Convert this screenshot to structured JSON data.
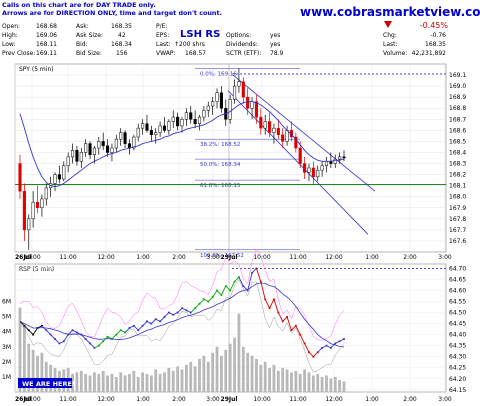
{
  "notes": {
    "line1": "Calls on this chart are for DAY TRADE only.",
    "line2": "Arrows are for DIRECTION ONLY, time and target don't count."
  },
  "watermark_url": "www.cobrasmarketview.com",
  "badge": "WE ARE HERE!",
  "pattern_label": "LSH RS",
  "quote": {
    "open_label": "Open:",
    "open": "168.68",
    "high_label": "High:",
    "high": "169.06",
    "low_label": "Low:",
    "low": "168.11",
    "prev_label": "Prev Close:",
    "prev": "169.11",
    "ask_label": "Ask:",
    "ask": "168.35",
    "asksize_label": "Ask Size:",
    "asksize": "42",
    "bid_label": "Bid:",
    "bid": "168.34",
    "bidsize_label": "Bid Size:",
    "bidsize": "156",
    "pe_label": "P/E:",
    "pe": "",
    "eps_label": "EPS:",
    "eps": "",
    "last_label": "Last:",
    "last_trade": "↑200 shrs",
    "vwap_label": "VWAP:",
    "vwap": "168.57",
    "options_label": "Options:",
    "options": "yes",
    "dividends_label": "Dividends:",
    "dividends": "yes",
    "sctr_label": "SCTR (ETF):",
    "sctr": "78.9",
    "pct_change": "-0.45%",
    "chg_label": "Chg:",
    "chg": "-0.76",
    "lastprice_label": "Last:",
    "lastprice": "168.35",
    "volume_label": "Volume:",
    "volume": "42,231,892"
  },
  "colors": {
    "up": "#00aa00",
    "down": "#dd0000",
    "neutral": "#000000",
    "ma": "#3333cc",
    "channel": "#3333cc",
    "support": "#007700",
    "rsp": "#3333cc",
    "ghost": "#ff66ff",
    "vwap_line": "#999999",
    "resistance_dotted": "#3333cc",
    "negative": "#cc0000"
  },
  "chart_data": [
    {
      "type": "candlestick",
      "title": "SPY (5 min)",
      "ylim": [
        167.5,
        169.2
      ],
      "yticks": [
        169.1,
        169.0,
        168.9,
        168.8,
        168.7,
        168.6,
        168.5,
        168.4,
        168.3,
        168.2,
        168.1,
        168.0,
        167.9,
        167.8,
        167.7,
        167.6
      ],
      "xticks": [
        "26Jul",
        "10:00",
        "11:00",
        "12:00",
        "1:00",
        "2:00",
        "3:00",
        "29Jul",
        "10:00",
        "11:00",
        "12:00",
        "1:00",
        "2:00",
        "3:00"
      ],
      "fib_levels": [
        {
          "label": "0.0%: 169.16",
          "value": 169.16
        },
        {
          "label": "38.2%: 168.52",
          "value": 168.52
        },
        {
          "label": "50.0%: 168.34",
          "value": 168.34
        },
        {
          "label": "61.8%: 168.15",
          "value": 168.15
        },
        {
          "label": "100.0%: 167.52",
          "value": 167.52
        }
      ],
      "support_level": 168.11,
      "resistance_level": 169.11,
      "bars": [
        {
          "o": 168.3,
          "h": 168.38,
          "l": 167.98,
          "c": 168.05
        },
        {
          "o": 168.05,
          "h": 168.12,
          "l": 167.6,
          "c": 167.7
        },
        {
          "o": 167.7,
          "h": 167.84,
          "l": 167.52,
          "c": 167.8
        },
        {
          "o": 167.8,
          "h": 168.05,
          "l": 167.72,
          "c": 167.95
        },
        {
          "o": 167.95,
          "h": 168.1,
          "l": 167.85,
          "c": 167.9
        },
        {
          "o": 167.9,
          "h": 168.02,
          "l": 167.82,
          "c": 167.98
        },
        {
          "o": 167.98,
          "h": 168.12,
          "l": 167.92,
          "c": 168.08
        },
        {
          "o": 168.08,
          "h": 168.18,
          "l": 168.0,
          "c": 168.12
        },
        {
          "o": 168.12,
          "h": 168.22,
          "l": 168.05,
          "c": 168.2
        },
        {
          "o": 168.2,
          "h": 168.28,
          "l": 168.12,
          "c": 168.16
        },
        {
          "o": 168.16,
          "h": 168.32,
          "l": 168.14,
          "c": 168.28
        },
        {
          "o": 168.28,
          "h": 168.4,
          "l": 168.22,
          "c": 168.36
        },
        {
          "o": 168.36,
          "h": 168.48,
          "l": 168.3,
          "c": 168.42
        },
        {
          "o": 168.42,
          "h": 168.46,
          "l": 168.28,
          "c": 168.32
        },
        {
          "o": 168.32,
          "h": 168.44,
          "l": 168.26,
          "c": 168.4
        },
        {
          "o": 168.4,
          "h": 168.52,
          "l": 168.36,
          "c": 168.48
        },
        {
          "o": 168.48,
          "h": 168.5,
          "l": 168.34,
          "c": 168.38
        },
        {
          "o": 168.38,
          "h": 168.46,
          "l": 168.3,
          "c": 168.44
        },
        {
          "o": 168.44,
          "h": 168.54,
          "l": 168.38,
          "c": 168.5
        },
        {
          "o": 168.5,
          "h": 168.58,
          "l": 168.42,
          "c": 168.46
        },
        {
          "o": 168.46,
          "h": 168.52,
          "l": 168.36,
          "c": 168.4
        },
        {
          "o": 168.4,
          "h": 168.48,
          "l": 168.32,
          "c": 168.44
        },
        {
          "o": 168.44,
          "h": 168.56,
          "l": 168.4,
          "c": 168.52
        },
        {
          "o": 168.52,
          "h": 168.62,
          "l": 168.46,
          "c": 168.58
        },
        {
          "o": 168.58,
          "h": 168.6,
          "l": 168.44,
          "c": 168.48
        },
        {
          "o": 168.48,
          "h": 168.52,
          "l": 168.38,
          "c": 168.44
        },
        {
          "o": 168.44,
          "h": 168.56,
          "l": 168.42,
          "c": 168.54
        },
        {
          "o": 168.54,
          "h": 168.66,
          "l": 168.5,
          "c": 168.62
        },
        {
          "o": 168.62,
          "h": 168.7,
          "l": 168.56,
          "c": 168.66
        },
        {
          "o": 168.66,
          "h": 168.74,
          "l": 168.58,
          "c": 168.6
        },
        {
          "o": 168.6,
          "h": 168.64,
          "l": 168.5,
          "c": 168.56
        },
        {
          "o": 168.56,
          "h": 168.62,
          "l": 168.48,
          "c": 168.58
        },
        {
          "o": 168.58,
          "h": 168.68,
          "l": 168.54,
          "c": 168.64
        },
        {
          "o": 168.64,
          "h": 168.72,
          "l": 168.58,
          "c": 168.6
        },
        {
          "o": 168.6,
          "h": 168.7,
          "l": 168.56,
          "c": 168.68
        },
        {
          "o": 168.68,
          "h": 168.78,
          "l": 168.62,
          "c": 168.72
        },
        {
          "o": 168.72,
          "h": 168.76,
          "l": 168.6,
          "c": 168.64
        },
        {
          "o": 168.64,
          "h": 168.72,
          "l": 168.58,
          "c": 168.7
        },
        {
          "o": 168.7,
          "h": 168.8,
          "l": 168.64,
          "c": 168.76
        },
        {
          "o": 168.76,
          "h": 168.82,
          "l": 168.66,
          "c": 168.7
        },
        {
          "o": 168.7,
          "h": 168.78,
          "l": 168.62,
          "c": 168.66
        },
        {
          "o": 168.66,
          "h": 168.74,
          "l": 168.6,
          "c": 168.72
        },
        {
          "o": 168.72,
          "h": 168.82,
          "l": 168.68,
          "c": 168.78
        },
        {
          "o": 168.78,
          "h": 168.86,
          "l": 168.72,
          "c": 168.82
        },
        {
          "o": 168.82,
          "h": 168.9,
          "l": 168.74,
          "c": 168.86
        },
        {
          "o": 168.86,
          "h": 168.98,
          "l": 168.8,
          "c": 168.94
        },
        {
          "o": 168.94,
          "h": 169.0,
          "l": 168.76,
          "c": 168.8
        },
        {
          "o": 168.8,
          "h": 168.88,
          "l": 168.64,
          "c": 168.7
        },
        {
          "o": 168.7,
          "h": 168.92,
          "l": 168.66,
          "c": 168.88
        },
        {
          "o": 168.88,
          "h": 169.06,
          "l": 168.84,
          "c": 169.0
        },
        {
          "o": 169.0,
          "h": 169.16,
          "l": 168.94,
          "c": 169.04
        },
        {
          "o": 169.04,
          "h": 169.08,
          "l": 168.84,
          "c": 168.9
        },
        {
          "o": 168.9,
          "h": 168.98,
          "l": 168.74,
          "c": 168.8
        },
        {
          "o": 168.8,
          "h": 168.9,
          "l": 168.7,
          "c": 168.86
        },
        {
          "o": 168.86,
          "h": 168.92,
          "l": 168.66,
          "c": 168.72
        },
        {
          "o": 168.72,
          "h": 168.8,
          "l": 168.56,
          "c": 168.62
        },
        {
          "o": 168.62,
          "h": 168.74,
          "l": 168.56,
          "c": 168.68
        },
        {
          "o": 168.68,
          "h": 168.76,
          "l": 168.54,
          "c": 168.58
        },
        {
          "o": 168.58,
          "h": 168.66,
          "l": 168.48,
          "c": 168.62
        },
        {
          "o": 168.62,
          "h": 168.7,
          "l": 168.52,
          "c": 168.56
        },
        {
          "o": 168.56,
          "h": 168.62,
          "l": 168.44,
          "c": 168.5
        },
        {
          "o": 168.5,
          "h": 168.64,
          "l": 168.46,
          "c": 168.6
        },
        {
          "o": 168.6,
          "h": 168.68,
          "l": 168.5,
          "c": 168.54
        },
        {
          "o": 168.54,
          "h": 168.58,
          "l": 168.4,
          "c": 168.44
        },
        {
          "o": 168.44,
          "h": 168.5,
          "l": 168.26,
          "c": 168.3
        },
        {
          "o": 168.3,
          "h": 168.36,
          "l": 168.16,
          "c": 168.22
        },
        {
          "o": 168.22,
          "h": 168.3,
          "l": 168.14,
          "c": 168.26
        },
        {
          "o": 168.26,
          "h": 168.32,
          "l": 168.11,
          "c": 168.18
        },
        {
          "o": 168.18,
          "h": 168.28,
          "l": 168.14,
          "c": 168.24
        },
        {
          "o": 168.24,
          "h": 168.32,
          "l": 168.18,
          "c": 168.28
        },
        {
          "o": 168.28,
          "h": 168.36,
          "l": 168.22,
          "c": 168.32
        },
        {
          "o": 168.32,
          "h": 168.4,
          "l": 168.26,
          "c": 168.3
        },
        {
          "o": 168.3,
          "h": 168.38,
          "l": 168.26,
          "c": 168.34
        },
        {
          "o": 168.34,
          "h": 168.4,
          "l": 168.3,
          "c": 168.36
        },
        {
          "o": 168.36,
          "h": 168.42,
          "l": 168.32,
          "c": 168.35
        }
      ],
      "ma": [
        168.75,
        168.62,
        168.48,
        168.36,
        168.26,
        168.18,
        168.13,
        168.1,
        168.09,
        168.1,
        168.12,
        168.15,
        168.18,
        168.21,
        168.24,
        168.27,
        168.3,
        168.32,
        168.34,
        168.36,
        168.38,
        168.39,
        168.4,
        168.42,
        168.43,
        168.44,
        168.45,
        168.46,
        168.48,
        168.49,
        168.5,
        168.51,
        168.52,
        168.54,
        168.55,
        168.57,
        168.58,
        168.59,
        168.61,
        168.62,
        168.63,
        168.64,
        168.65,
        168.67,
        168.69,
        168.72,
        168.74,
        168.75,
        168.77,
        168.8,
        168.83,
        168.85,
        168.86,
        168.86,
        168.85,
        168.83,
        168.8,
        168.77,
        168.73,
        168.69,
        168.64,
        168.6,
        168.56,
        168.52,
        168.47,
        168.42,
        168.38,
        168.35,
        168.33,
        168.32,
        168.32,
        168.32,
        168.33,
        168.33,
        168.34
      ]
    },
    {
      "type": "line",
      "title": "RSP (5 min)",
      "ylim": [
        64.14,
        64.72
      ],
      "yticks": [
        64.7,
        64.65,
        64.6,
        64.55,
        64.5,
        64.45,
        64.4,
        64.35,
        64.3,
        64.25,
        64.2,
        64.15
      ],
      "volume_ticks": [
        "6M",
        "5M",
        "4M",
        "3M",
        "2M",
        "1M"
      ],
      "resistance_level": 64.7,
      "series": [],
      "rsp": [
        64.46,
        64.44,
        64.42,
        64.4,
        64.43,
        64.44,
        64.42,
        64.4,
        64.38,
        64.36,
        64.37,
        64.4,
        64.42,
        64.41,
        64.4,
        64.38,
        64.36,
        64.34,
        64.35,
        64.37,
        64.39,
        64.38,
        64.4,
        64.42,
        64.41,
        64.43,
        64.44,
        64.42,
        64.44,
        64.46,
        64.45,
        64.47,
        64.46,
        64.48,
        64.5,
        64.49,
        64.5,
        64.52,
        64.51,
        64.5,
        64.52,
        64.54,
        64.56,
        64.55,
        64.57,
        64.6,
        64.58,
        64.62,
        64.6,
        64.64,
        64.66,
        64.62,
        64.6,
        64.68,
        64.7,
        64.64,
        64.56,
        64.52,
        64.56,
        64.5,
        64.46,
        64.48,
        64.42,
        64.44,
        64.4,
        64.36,
        64.32,
        64.3,
        64.32,
        64.34,
        64.35,
        64.34,
        64.36,
        64.37,
        64.38
      ],
      "volume": [
        5.6,
        4.4,
        3.2,
        2.8,
        2.4,
        2.6,
        2.0,
        1.8,
        1.6,
        1.4,
        1.5,
        1.6,
        1.2,
        1.3,
        1.4,
        1.2,
        1.1,
        1.3,
        1.2,
        1.4,
        1.1,
        1.2,
        1.0,
        1.3,
        1.1,
        1.2,
        1.4,
        1.0,
        1.3,
        1.2,
        1.1,
        1.5,
        1.2,
        1.3,
        1.6,
        1.4,
        1.7,
        1.5,
        1.8,
        2.0,
        1.7,
        2.2,
        2.4,
        2.0,
        2.6,
        3.0,
        2.4,
        2.8,
        3.2,
        3.6,
        5.2,
        3.0,
        2.6,
        2.4,
        2.2,
        1.8,
        2.0,
        1.6,
        1.8,
        1.4,
        1.6,
        1.5,
        1.3,
        1.4,
        1.2,
        1.5,
        1.3,
        1.1,
        1.2,
        1.0,
        1.1,
        0.9,
        1.0,
        0.8,
        0.7
      ]
    }
  ]
}
